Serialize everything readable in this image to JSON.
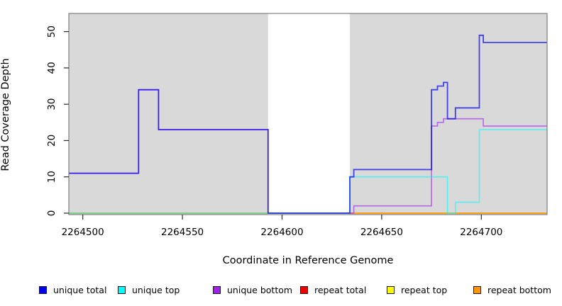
{
  "figure": {
    "bg": "#ffffff"
  },
  "y_axis": {
    "title": "Read Coverage Depth",
    "ticks": [
      0,
      10,
      20,
      30,
      40,
      50
    ]
  },
  "x_axis": {
    "title": "Coordinate in Reference Genome",
    "ticks": [
      2264500,
      2264550,
      2264600,
      2264650,
      2264700
    ]
  },
  "plot": {
    "bg": "#d9d9d9",
    "border_color": "#7f7f7f",
    "tick_color": "#2a2a2a",
    "gap_band": {
      "from": 2264593,
      "to": 2264634,
      "color": "#ffffff"
    }
  },
  "chart_data": {
    "type": "line",
    "step": true,
    "title": "",
    "xlabel": "Coordinate in Reference Genome",
    "ylabel": "Read Coverage Depth",
    "x_range": [
      2264493,
      2264733
    ],
    "y_range": [
      -0.4,
      55.0
    ],
    "grid": false,
    "legend_position": "bottom",
    "series": [
      {
        "name": "repeat total",
        "color": "#ee0000",
        "opacity": 0.65,
        "width": 1.6,
        "points": [
          [
            2264493,
            0
          ]
        ]
      },
      {
        "name": "repeat top",
        "color": "#ffff00",
        "opacity": 0.65,
        "width": 1.6,
        "points": [
          [
            2264493,
            0
          ]
        ]
      },
      {
        "name": "repeat bottom",
        "color": "#ff9800",
        "opacity": 0.85,
        "width": 1.7,
        "points": [
          [
            2264493,
            0
          ]
        ]
      },
      {
        "name": "unique bottom",
        "color": "#a020f0",
        "opacity": 0.62,
        "width": 1.6,
        "points": [
          [
            2264493,
            11
          ],
          [
            2264528,
            34
          ],
          [
            2264538,
            23
          ],
          [
            2264593,
            0
          ],
          [
            2264636,
            2
          ],
          [
            2264675,
            24
          ],
          [
            2264678,
            25
          ],
          [
            2264681,
            26
          ],
          [
            2264701,
            24
          ]
        ]
      },
      {
        "name": "unique top",
        "color": "#00ffff",
        "opacity": 0.62,
        "width": 1.6,
        "points": [
          [
            2264493,
            0
          ],
          [
            2264634,
            10
          ],
          [
            2264683,
            0
          ],
          [
            2264687,
            3
          ],
          [
            2264699,
            23
          ]
        ]
      },
      {
        "name": "unique total",
        "color": "#0000ee",
        "opacity": 0.7,
        "width": 1.8,
        "points": [
          [
            2264493,
            11
          ],
          [
            2264528,
            34
          ],
          [
            2264538,
            23
          ],
          [
            2264593,
            0
          ],
          [
            2264634,
            10
          ],
          [
            2264636,
            12
          ],
          [
            2264675,
            34
          ],
          [
            2264678,
            35
          ],
          [
            2264681,
            36
          ],
          [
            2264683,
            26
          ],
          [
            2264687,
            29
          ],
          [
            2264699,
            49
          ],
          [
            2264701,
            47
          ]
        ]
      }
    ]
  },
  "legend": {
    "items": [
      {
        "label": "unique total",
        "color": "#0000ee"
      },
      {
        "label": "unique top",
        "color": "#00ffff"
      },
      {
        "label": "unique bottom",
        "color": "#a020f0"
      },
      {
        "label": "repeat total",
        "color": "#ee0000"
      },
      {
        "label": "repeat top",
        "color": "#ffff00"
      },
      {
        "label": "repeat bottom",
        "color": "#ff9800"
      }
    ]
  }
}
